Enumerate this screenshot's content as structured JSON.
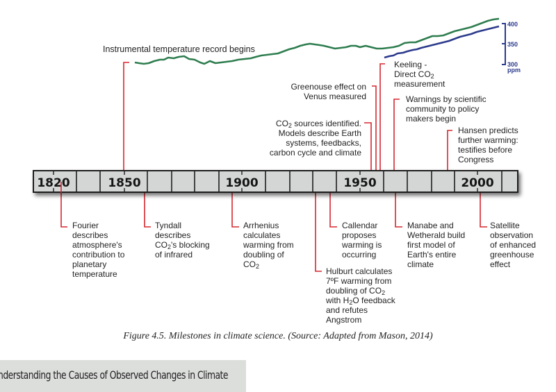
{
  "figure": {
    "caption": "Figure 4.5.  Milestones in climate science. (Source: Adapted from Mason, 2014)",
    "colors": {
      "timeline_fill": "#d4d6d6",
      "timeline_border": "#1e1e1e",
      "connector": "#d6262f",
      "temperature_line": "#2e7d4f",
      "co2_line": "#2b3a8c"
    },
    "timeline": {
      "start_year": 1810,
      "end_year": 2020,
      "year_labels": [
        "1820",
        "1850",
        "1900",
        "1950",
        "2000"
      ]
    },
    "temperature_series": {
      "label": "Instrumental temperature record begins",
      "start_year": 1850
    },
    "co2_axis": {
      "ticks": [
        "400",
        "350",
        "300"
      ],
      "unit": "ppm",
      "range": [
        300,
        400
      ]
    },
    "events_above": [
      {
        "year": 1850,
        "text": "Instrumental temperature record begins"
      },
      {
        "year": 1958,
        "text": "Keeling -\nDirect CO₂\nmeasurement"
      },
      {
        "year": 1956,
        "text": "Greenouse effect on\nVenus measured"
      },
      {
        "year": 1955,
        "text": "CO₂ sources identified.\nModels describe Earth\nsystems, feedbacks,\ncarbon cycle and climate"
      },
      {
        "year": 1965,
        "text": "Warnings by scientific\ncommunity to policy\nmakers begin"
      },
      {
        "year": 1988,
        "text": "Hansen predicts\nfurther warming:\ntestifies before\nCongress"
      }
    ],
    "events_below": [
      {
        "year": 1824,
        "text": "Fourier\ndescribes\natmosphere's\ncontribution to\nplanetary\ntemperature"
      },
      {
        "year": 1859,
        "text": "Tyndall\ndescribes\nCO₂'s blocking\nof infrared"
      },
      {
        "year": 1896,
        "text": "Arrhenius\ncalculates\nwarming from\ndoubling of\nCO₂"
      },
      {
        "year": 1931,
        "text": "Hulburt calculates\n7ºF warming from\ndoubling of CO₂\nwith H₂O feedback\nand refutes\nAngstrom"
      },
      {
        "year": 1938,
        "text": "Callendar\nproposes\nwarming is\noccurring"
      },
      {
        "year": 1967,
        "text": "Manabe and\nWetherald build\nfirst model of\nEarth's entire\nclimate"
      },
      {
        "year": 2000,
        "text": "Satellite\nobservation\nof enhanced\ngreenhouse\neffect"
      }
    ]
  },
  "section": {
    "title": "nderstanding the Causes of Observed Changes in Climate"
  }
}
